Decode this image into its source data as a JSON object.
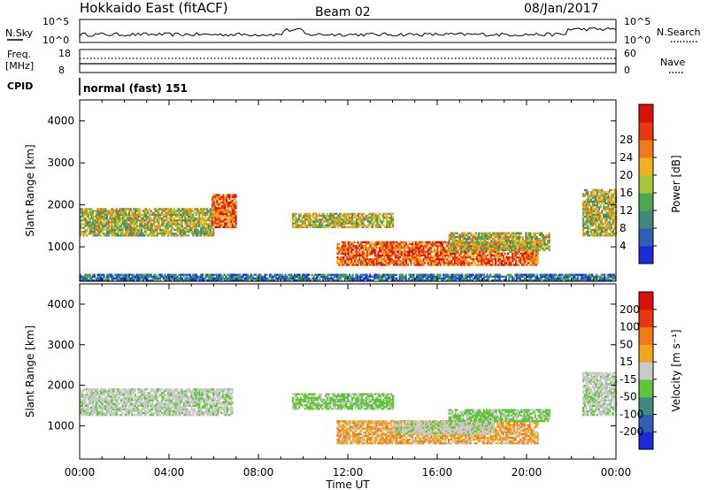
{
  "header": {
    "station": "Hokkaido East (fitACF)",
    "beam": "Beam 02",
    "date": "08/Jan/2017"
  },
  "strip_labels": {
    "nsky": "N.Sky",
    "nsearch": "N.Search",
    "freq_line1": "Freq.",
    "freq_line2": "[MHz]",
    "nave": "Nave",
    "cpid": "CPID",
    "cpid_value": "normal (fast) 151"
  },
  "strip_ticks": {
    "noise_left": [
      "10^5",
      "10^0"
    ],
    "noise_right": [
      "10^5",
      "10^0"
    ],
    "freq_left": [
      "18",
      "8"
    ],
    "freq_right": [
      "60",
      "0"
    ]
  },
  "chart_data": [
    {
      "type": "heatmap",
      "name": "power-panel",
      "ylabel": "Slant Range [km]",
      "yticks": [
        "1000",
        "2000",
        "3000",
        "4000"
      ],
      "ylim": [
        180,
        4500
      ],
      "xlim": [
        0,
        24
      ],
      "colorbar": {
        "label": "Power [dB]",
        "ticks": [
          "4",
          "8",
          "12",
          "16",
          "20",
          "24",
          "28"
        ],
        "colors": [
          "#1c2bd6",
          "#2f5fb5",
          "#3f8a7a",
          "#4ea64e",
          "#a7c63a",
          "#f0b21c",
          "#f07a18",
          "#e9360f",
          "#d9110b"
        ]
      },
      "regions": [
        {
          "t0": 0.0,
          "t1": 6.0,
          "r0": 1250,
          "r1": 1900,
          "level": "mid"
        },
        {
          "t0": 5.9,
          "t1": 7.0,
          "r0": 1450,
          "r1": 2250,
          "level": "high"
        },
        {
          "t0": 9.5,
          "t1": 14.0,
          "r0": 1450,
          "r1": 1780,
          "level": "mid"
        },
        {
          "t0": 11.5,
          "t1": 20.5,
          "r0": 550,
          "r1": 1100,
          "level": "high"
        },
        {
          "t0": 16.5,
          "t1": 21.0,
          "r0": 900,
          "r1": 1350,
          "level": "mid"
        },
        {
          "t0": 22.5,
          "t1": 24.0,
          "r0": 1250,
          "r1": 2350,
          "level": "mid"
        },
        {
          "t0": 0.0,
          "t1": 24.0,
          "r0": 180,
          "r1": 320,
          "level": "low"
        }
      ]
    },
    {
      "type": "heatmap",
      "name": "velocity-panel",
      "ylabel": "Slant Range [km]",
      "xlabel": "Time UT",
      "xticks": [
        "00:00",
        "04:00",
        "08:00",
        "12:00",
        "16:00",
        "20:00",
        "00:00"
      ],
      "yticks": [
        "1000",
        "2000",
        "3000",
        "4000"
      ],
      "ylim": [
        180,
        4500
      ],
      "xlim": [
        0,
        24
      ],
      "colorbar": {
        "label": "Velocity [m s⁻¹]",
        "ticks": [
          "200",
          "100",
          "50",
          "15",
          "-15",
          "-50",
          "-100",
          "-200"
        ],
        "colors": [
          "#1c2bd6",
          "#2f5fb5",
          "#3f8a7a",
          "#62c43a",
          "#c9c9c9",
          "#f0a51c",
          "#f07a18",
          "#e9360f",
          "#d9110b"
        ]
      },
      "regions": [
        {
          "t0": 0.0,
          "t1": 6.8,
          "r0": 1250,
          "r1": 1900,
          "level": "gray"
        },
        {
          "t0": 9.5,
          "t1": 14.0,
          "r0": 1400,
          "r1": 1780,
          "level": "green"
        },
        {
          "t0": 11.5,
          "t1": 20.5,
          "r0": 550,
          "r1": 1100,
          "level": "orange"
        },
        {
          "t0": 14.0,
          "t1": 18.5,
          "r0": 800,
          "r1": 1100,
          "level": "gray"
        },
        {
          "t0": 16.5,
          "t1": 21.0,
          "r0": 1100,
          "r1": 1400,
          "level": "green"
        },
        {
          "t0": 22.5,
          "t1": 24.0,
          "r0": 1250,
          "r1": 2300,
          "level": "gray"
        }
      ]
    }
  ]
}
